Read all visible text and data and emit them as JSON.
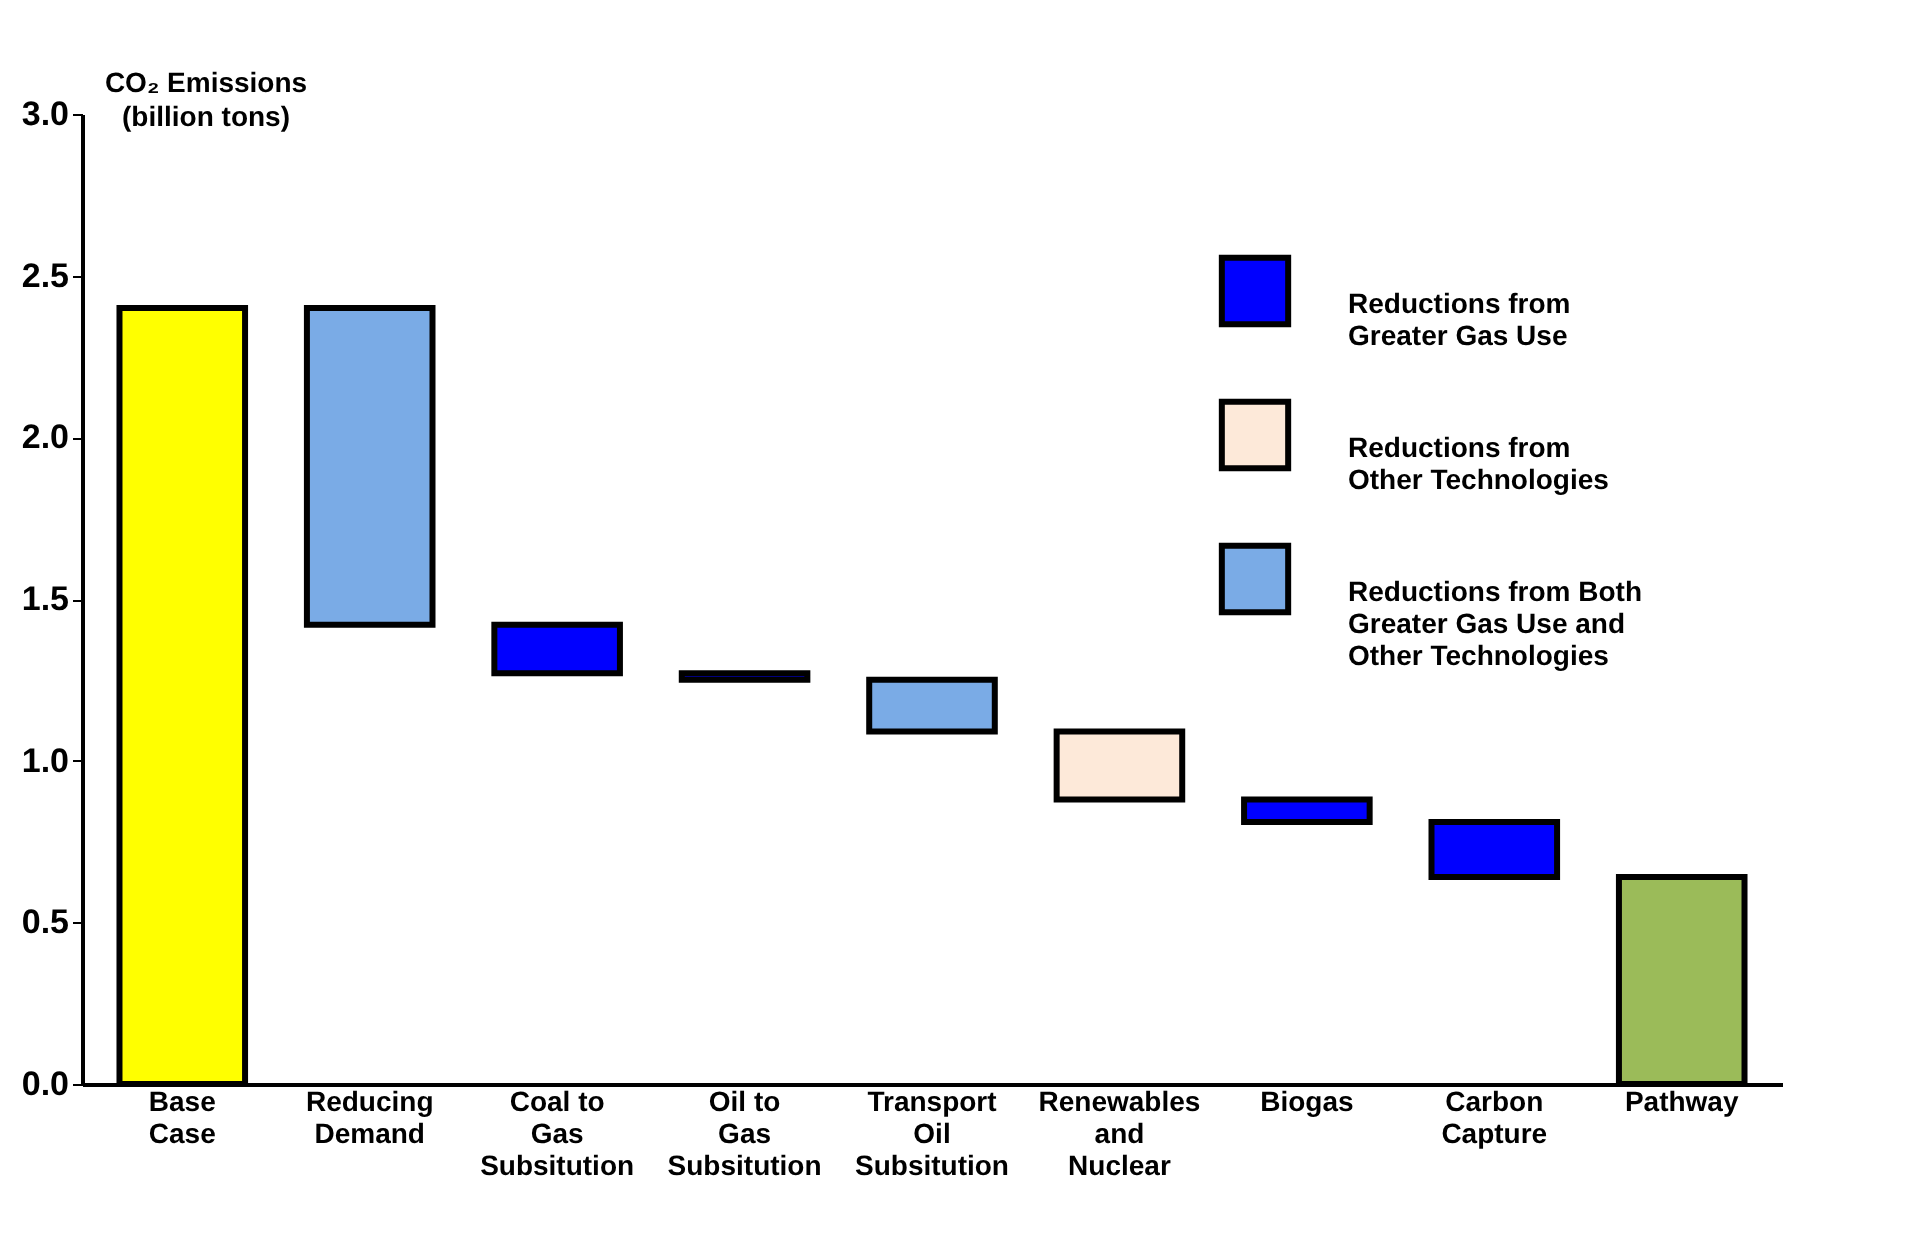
{
  "chart_data": {
    "type": "bar",
    "ylabel": "CO₂ Emissions (billion tons)",
    "categories": [
      "Base Case",
      "Reducing Demand",
      "Coal to Gas Subsitution",
      "Oil to Gas Subsitution",
      "Transport Oil Subsitution",
      "Renewables and Nuclear",
      "Biogas",
      "Carbon Capture",
      "Pathway"
    ],
    "series": [
      {
        "color": "#ffff00",
        "values": [
          2.4,
          null,
          null,
          null,
          null,
          null,
          null,
          null,
          null
        ],
        "base": [
          0,
          null,
          null,
          null,
          null,
          null,
          null,
          null,
          null
        ]
      },
      {
        "name": "Reductions from Greater Gas Use",
        "color": "#0000ff",
        "values": [
          null,
          null,
          0.15,
          0.02,
          null,
          null,
          0.07,
          0.17,
          null
        ],
        "base": [
          null,
          null,
          1.27,
          1.25,
          null,
          null,
          0.81,
          0.64,
          null
        ]
      },
      {
        "name": "Reductions from Other Technologies",
        "color": "#fde9d9",
        "values": [
          null,
          null,
          null,
          null,
          null,
          0.21,
          null,
          null,
          null
        ],
        "base": [
          null,
          null,
          null,
          null,
          null,
          0.88,
          null,
          null,
          null
        ]
      },
      {
        "name": "Reductions from Both Greater Gas Use and Other Technologies",
        "color": "#7aabe6",
        "values": [
          null,
          0.98,
          null,
          null,
          0.16,
          null,
          null,
          null,
          null
        ],
        "base": [
          null,
          1.42,
          null,
          null,
          1.09,
          null,
          null,
          null,
          null
        ]
      },
      {
        "color": "#9bbb59",
        "values": [
          null,
          null,
          null,
          null,
          null,
          null,
          null,
          null,
          0.64
        ],
        "base": [
          null,
          null,
          null,
          null,
          null,
          null,
          null,
          null,
          0
        ]
      }
    ],
    "ylim": [
      0,
      3.0
    ],
    "yticks": [
      {
        "value": 0,
        "label": "0.0"
      },
      0.5,
      {
        "value": 1,
        "label": "1.0"
      },
      1.5,
      {
        "value": 2,
        "label": "2.0"
      },
      2.5,
      {
        "value": 3,
        "label": "3.0"
      }
    ],
    "grid": false,
    "legend": "top right"
  }
}
